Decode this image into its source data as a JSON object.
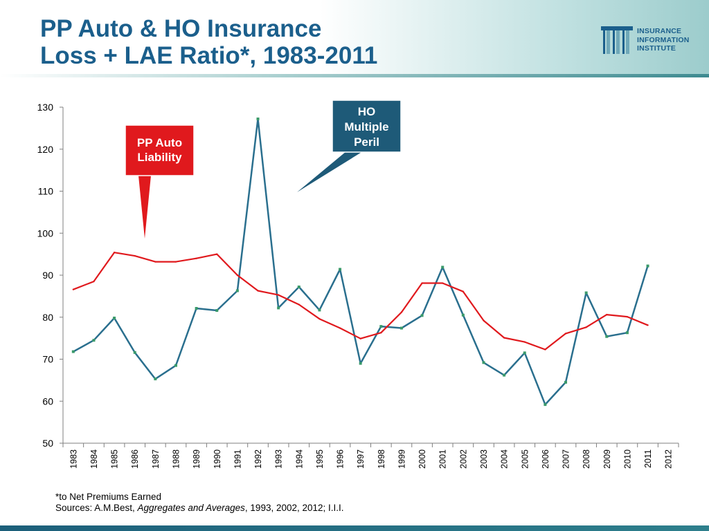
{
  "header": {
    "title_line1": "PP Auto & HO Insurance",
    "title_line2": "Loss + LAE Ratio*, 1983-2011",
    "logo_lines": [
      "INSURANCE",
      "INFORMATION",
      "INSTITUTE"
    ]
  },
  "colors": {
    "title": "#1b5f8c",
    "ho_series": "#2a6f8e",
    "ho_markers": "#3a9a6a",
    "pp_series": "#e0191d",
    "ho_callout_bg": "#1e5a78",
    "pp_callout_bg": "#e0191d"
  },
  "chart_data": {
    "type": "line",
    "x": [
      1983,
      1984,
      1985,
      1986,
      1987,
      1988,
      1989,
      1990,
      1991,
      1992,
      1993,
      1994,
      1995,
      1996,
      1997,
      1998,
      1999,
      2000,
      2001,
      2002,
      2003,
      2004,
      2005,
      2006,
      2007,
      2008,
      2009,
      2010,
      2011,
      2012
    ],
    "tick_labels": [
      "1983",
      "1984",
      "1985",
      "1986",
      "1987",
      "1988",
      "1989",
      "1990",
      "1991",
      "1992",
      "1993",
      "1994",
      "1995",
      "1996",
      "1997",
      "1998",
      "1999",
      "2000",
      "2001",
      "2002",
      "2003",
      "2004",
      "2005",
      "2006",
      "2007",
      "2008",
      "2009",
      "2010",
      "2011",
      "2012"
    ],
    "ylim": [
      50,
      130
    ],
    "yticks": [
      50,
      60,
      70,
      80,
      90,
      100,
      110,
      120,
      130
    ],
    "grid": false,
    "series": [
      {
        "name": "HO Multiple Peril",
        "callout_lines": [
          "HO",
          "Multiple",
          "Peril"
        ],
        "values": [
          71.8,
          74.5,
          79.8,
          71.6,
          65.3,
          68.5,
          82.1,
          81.6,
          86.3,
          127.2,
          82.2,
          87.2,
          81.7,
          91.4,
          69.0,
          77.8,
          77.4,
          80.4,
          91.9,
          80.5,
          69.2,
          66.2,
          71.5,
          59.2,
          64.5,
          85.8,
          75.4,
          76.3,
          92.2,
          null
        ]
      },
      {
        "name": "PP Auto Liability",
        "callout_lines": [
          "PP Auto",
          "Liability"
        ],
        "values": [
          86.6,
          88.5,
          95.4,
          94.6,
          93.2,
          93.2,
          94.0,
          95.0,
          90.0,
          86.3,
          85.3,
          83.0,
          79.6,
          77.4,
          74.9,
          76.3,
          81.2,
          88.1,
          88.1,
          86.1,
          79.2,
          75.1,
          74.1,
          72.3,
          76.1,
          77.6,
          80.6,
          80.1,
          78.1,
          null
        ]
      }
    ]
  },
  "footnote": {
    "line1": "*to Net Premiums Earned",
    "sources_prefix": "Sources: A.M.Best, ",
    "sources_italic": "Aggregates and Averages",
    "sources_suffix": ", 1993, 2002, 2012; I.I.I."
  }
}
